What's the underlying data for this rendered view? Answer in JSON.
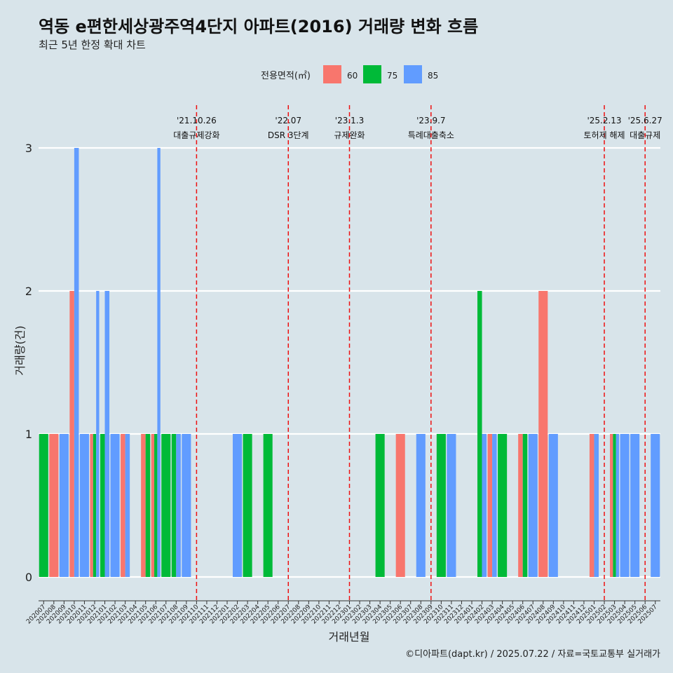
{
  "chart_data": {
    "type": "bar",
    "title": "역동 e편한세상광주역4단지 아파트(2016) 거래량 변화 흐름",
    "subtitle": "최근 5년 한정 확대 차트",
    "xlabel": "거래년월",
    "ylabel": "거래량(건)",
    "caption": "©디아파트(dapt.kr) / 2025.07.22 / 자료=국토교통부 실거래가",
    "legend_title": "전용면적(㎡)",
    "legend_position": "top",
    "ylim": [
      0,
      3
    ],
    "yticks": [
      0,
      1,
      2,
      3
    ],
    "grid": true,
    "categories": [
      "202007",
      "202008",
      "202009",
      "202010",
      "202011",
      "202012",
      "202101",
      "202102",
      "202103",
      "202104",
      "202105",
      "202106",
      "202107",
      "202108",
      "202109",
      "202110",
      "202111",
      "202112",
      "202201",
      "202202",
      "202203",
      "202204",
      "202205",
      "202206",
      "202207",
      "202208",
      "202209",
      "202210",
      "202211",
      "202212",
      "202301",
      "202302",
      "202303",
      "202304",
      "202305",
      "202306",
      "202307",
      "202308",
      "202309",
      "202310",
      "202311",
      "202312",
      "202401",
      "202402",
      "202403",
      "202404",
      "202405",
      "202406",
      "202407",
      "202408",
      "202409",
      "202410",
      "202411",
      "202412",
      "202501",
      "202502",
      "202503",
      "202504",
      "202505",
      "202506",
      "202507"
    ],
    "series": [
      {
        "name": "60",
        "color": "#F8766D",
        "values": [
          0,
          1,
          0,
          2,
          0,
          1,
          0,
          0,
          1,
          0,
          1,
          1,
          0,
          0,
          0,
          0,
          0,
          0,
          0,
          0,
          0,
          0,
          0,
          0,
          0,
          0,
          0,
          0,
          0,
          0,
          0,
          0,
          0,
          0,
          0,
          1,
          0,
          0,
          0,
          0,
          0,
          0,
          0,
          0,
          1,
          0,
          0,
          1,
          0,
          2,
          0,
          0,
          0,
          0,
          1,
          0,
          1,
          0,
          0,
          0,
          0
        ]
      },
      {
        "name": "75",
        "color": "#00BA38",
        "values": [
          1,
          0,
          0,
          0,
          0,
          1,
          1,
          0,
          0,
          0,
          1,
          1,
          1,
          1,
          0,
          0,
          0,
          0,
          0,
          0,
          1,
          0,
          1,
          0,
          0,
          0,
          0,
          0,
          0,
          0,
          0,
          0,
          0,
          1,
          0,
          0,
          0,
          0,
          0,
          1,
          0,
          0,
          0,
          2,
          0,
          1,
          0,
          1,
          0,
          0,
          0,
          0,
          0,
          0,
          0,
          0,
          1,
          0,
          0,
          0,
          0
        ]
      },
      {
        "name": "85",
        "color": "#619CFF",
        "values": [
          0,
          0,
          1,
          3,
          1,
          2,
          2,
          1,
          1,
          0,
          0,
          3,
          0,
          1,
          1,
          0,
          0,
          0,
          0,
          1,
          0,
          0,
          0,
          0,
          0,
          0,
          0,
          0,
          0,
          0,
          0,
          0,
          0,
          0,
          0,
          0,
          0,
          1,
          0,
          0,
          1,
          0,
          0,
          1,
          1,
          0,
          0,
          0,
          1,
          0,
          1,
          0,
          0,
          0,
          1,
          0,
          1,
          1,
          1,
          0,
          1
        ]
      }
    ],
    "annotations": [
      {
        "x": "202110",
        "date": "'21.10.26",
        "label": "대출규제강화"
      },
      {
        "x": "202207",
        "date": "'22.07",
        "label": "DSR 3단계"
      },
      {
        "x": "202301",
        "date": "'23.1.3",
        "label": "규제완화"
      },
      {
        "x": "202309",
        "date": "'23.9.7",
        "label": "특례대출축소"
      },
      {
        "x": "202502",
        "date": "'25.2.13",
        "label": "토허제 해제"
      },
      {
        "x": "202506",
        "date": "'25.6.27",
        "label": "대출규제"
      }
    ]
  }
}
